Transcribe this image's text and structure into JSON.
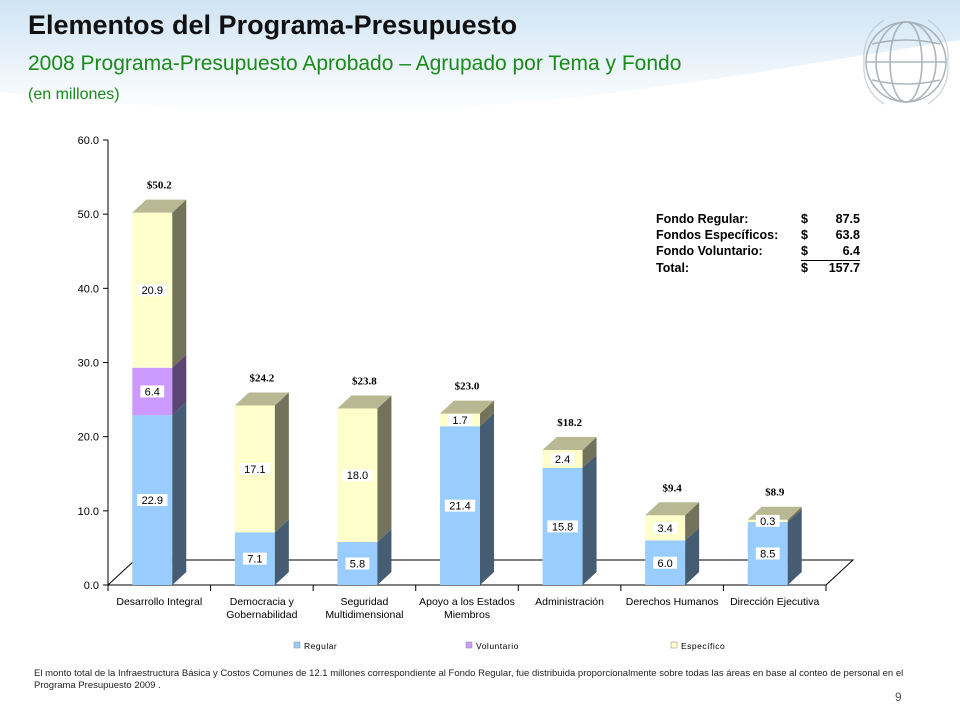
{
  "header": {
    "title": "Elementos del Programa-Presupuesto",
    "subtitle": "2008 Programa-Presupuesto Aprobado – Agrupado por Tema y Fondo",
    "units": "(en millones)"
  },
  "chart_data": {
    "type": "bar",
    "stacked": true,
    "categories": [
      [
        "Desarrollo Integral"
      ],
      [
        "Democracia y",
        "Gobernabilidad"
      ],
      [
        "Seguridad",
        "Multidimensional"
      ],
      [
        "Apoyo a los Estados",
        "Miembros"
      ],
      [
        "Administración"
      ],
      [
        "Derechos Humanos"
      ],
      [
        "Dirección Ejecutiva"
      ]
    ],
    "series": [
      {
        "name": "Regular",
        "color": "#99ccff",
        "values": [
          22.9,
          7.1,
          5.8,
          21.4,
          15.8,
          6.0,
          8.5
        ],
        "labels": [
          "22.9",
          "7.1",
          "5.8",
          "21.4",
          "15.8",
          "6.0",
          "8.5"
        ]
      },
      {
        "name": "Voluntario",
        "color": "#cc99ff",
        "values": [
          6.4,
          0,
          0,
          0,
          0,
          0,
          0
        ],
        "labels": [
          "6.4",
          "",
          "",
          "",
          "",
          "",
          ""
        ]
      },
      {
        "name": "Específico",
        "color": "#ffffcc",
        "values": [
          20.9,
          17.1,
          18.0,
          1.7,
          2.4,
          3.4,
          0.3
        ],
        "labels": [
          "20.9",
          "17.1",
          "18.0",
          "1.7",
          "2.4",
          "3.4",
          "0.3"
        ]
      }
    ],
    "totals": [
      "$50.2",
      "$24.2",
      "$23.8",
      "$23.0",
      "$18.2",
      "$9.4",
      "$8.9"
    ],
    "yticks": [
      "0.0",
      "10.0",
      "20.0",
      "30.0",
      "40.0",
      "50.0",
      "60.0"
    ],
    "ylim": [
      0,
      60
    ],
    "grid": false,
    "legend_position": "bottom",
    "xlabel": "",
    "ylabel": ""
  },
  "summary": {
    "rows": [
      {
        "label": "Fondo Regular:",
        "currency": "$",
        "value": "87.5"
      },
      {
        "label": "Fondos Específicos:",
        "currency": "$",
        "value": "63.8"
      },
      {
        "label": "Fondo Voluntario:",
        "currency": "$",
        "value": "6.4"
      },
      {
        "label": "Total:",
        "currency": "$",
        "value": "157.7"
      }
    ]
  },
  "footnote": "El monto total de la Infraestructura Básica y Costos Comunes de 12.1 millones correspondiente al Fondo Regular, fue distribuida proporcionalmente sobre todas las áreas en base al conteo de personal en el Programa Presupuesto 2009 .",
  "page_number": "9"
}
